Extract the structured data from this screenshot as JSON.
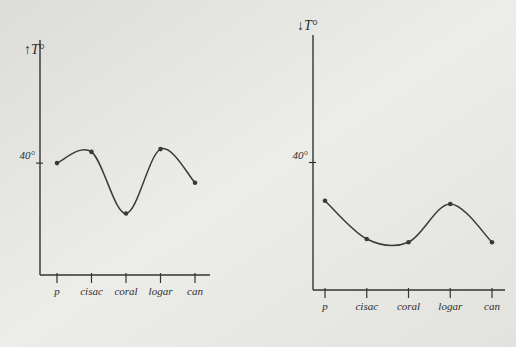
{
  "chart_data": [
    {
      "type": "line",
      "y_label": "↑T°",
      "categories": [
        "p",
        "cisac",
        "coral",
        "logar",
        "can"
      ],
      "series": [
        {
          "color": "#3a3a3a",
          "marker": "dot",
          "values": [
            40,
            44,
            22,
            45,
            33
          ]
        }
      ],
      "ylim": [
        0,
        84
      ],
      "yticks": [
        {
          "value": 40,
          "label": "40°"
        }
      ]
    },
    {
      "type": "line",
      "y_label": "↓T°",
      "categories": [
        "p",
        "cisac",
        "coral",
        "logar",
        "can"
      ],
      "series": [
        {
          "color": "#3a3a3a",
          "marker": "dot",
          "values": [
            28,
            16,
            15,
            27,
            15
          ]
        }
      ],
      "ylim": [
        0,
        80
      ],
      "yticks": [
        {
          "value": 40,
          "label": "40°"
        }
      ]
    }
  ]
}
